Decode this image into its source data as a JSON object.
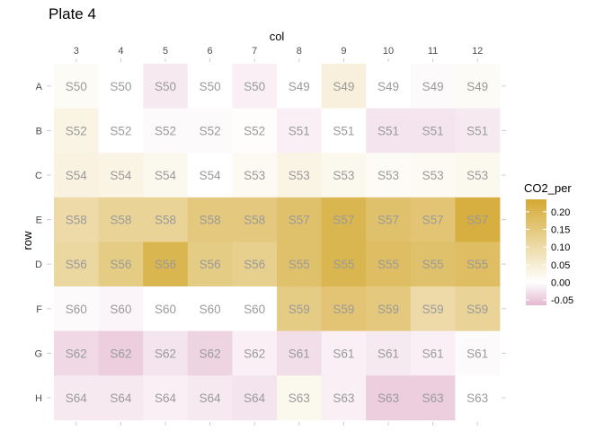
{
  "chart_data": {
    "type": "heatmap",
    "title": "Plate 4",
    "xlabel": "col",
    "ylabel": "row",
    "columns": [
      "3",
      "4",
      "5",
      "6",
      "7",
      "8",
      "9",
      "10",
      "11",
      "12"
    ],
    "rows": [
      "A",
      "B",
      "C",
      "E",
      "D",
      "F",
      "G",
      "H"
    ],
    "cells": [
      {
        "row": "A",
        "labels": [
          "S50",
          "S50",
          "S50",
          "S50",
          "S50",
          "S49",
          "S49",
          "S49",
          "S49",
          "S49"
        ],
        "values": [
          0.01,
          0.0,
          -0.02,
          0.0,
          -0.015,
          0.0,
          0.04,
          0.0,
          -0.005,
          0.01
        ]
      },
      {
        "row": "B",
        "labels": [
          "S52",
          "S52",
          "S52",
          "S52",
          "S52",
          "S51",
          "S51",
          "S51",
          "S51",
          "S51"
        ],
        "values": [
          0.03,
          0.0,
          -0.005,
          -0.005,
          0.005,
          -0.015,
          0.0,
          -0.025,
          -0.025,
          -0.02
        ]
      },
      {
        "row": "C",
        "labels": [
          "S54",
          "S54",
          "S54",
          "S54",
          "S53",
          "S53",
          "S53",
          "S53",
          "S53",
          "S53"
        ],
        "values": [
          0.035,
          0.03,
          0.02,
          0.0,
          0.015,
          0.03,
          0.02,
          0.01,
          0.015,
          0.02
        ]
      },
      {
        "row": "E",
        "labels": [
          "S58",
          "S58",
          "S58",
          "S58",
          "S58",
          "S57",
          "S57",
          "S57",
          "S57",
          "S57"
        ],
        "values": [
          0.1,
          0.12,
          0.12,
          0.15,
          0.15,
          0.17,
          0.2,
          0.17,
          0.16,
          0.22
        ]
      },
      {
        "row": "D",
        "labels": [
          "S56",
          "S56",
          "S56",
          "S56",
          "S56",
          "S55",
          "S55",
          "S55",
          "S55",
          "S55"
        ],
        "values": [
          0.11,
          0.14,
          0.2,
          0.14,
          0.13,
          0.17,
          0.2,
          0.18,
          0.17,
          0.18
        ]
      },
      {
        "row": "F",
        "labels": [
          "S60",
          "S60",
          "S60",
          "S60",
          "S60",
          "S59",
          "S59",
          "S59",
          "S59",
          "S59"
        ],
        "values": [
          -0.005,
          -0.01,
          0.0,
          0.0,
          0.0,
          0.14,
          0.16,
          0.15,
          0.1,
          0.12
        ]
      },
      {
        "row": "G",
        "labels": [
          "S62",
          "S62",
          "S62",
          "S62",
          "S62",
          "S61",
          "S61",
          "S61",
          "S61",
          "S61"
        ],
        "values": [
          -0.035,
          -0.045,
          -0.025,
          -0.04,
          -0.015,
          -0.03,
          -0.015,
          -0.02,
          -0.015,
          -0.005
        ]
      },
      {
        "row": "H",
        "labels": [
          "S64",
          "S64",
          "S64",
          "S64",
          "S64",
          "S63",
          "S63",
          "S63",
          "S63",
          "S63"
        ],
        "values": [
          -0.02,
          -0.02,
          -0.015,
          -0.02,
          -0.025,
          0.02,
          -0.015,
          -0.045,
          -0.045,
          0.0
        ]
      }
    ],
    "legend": {
      "title": "CO2_per",
      "ticks": [
        "0.20",
        "0.15",
        "0.10",
        "0.05",
        "0.00",
        "-0.05"
      ],
      "tick_values": [
        0.2,
        0.15,
        0.1,
        0.05,
        0.0,
        -0.05
      ],
      "min": -0.065,
      "max": 0.235,
      "low_color": "#e3b8cf",
      "mid_color": "#ffffff",
      "high_color": "#d4a933",
      "placement": "right"
    }
  }
}
